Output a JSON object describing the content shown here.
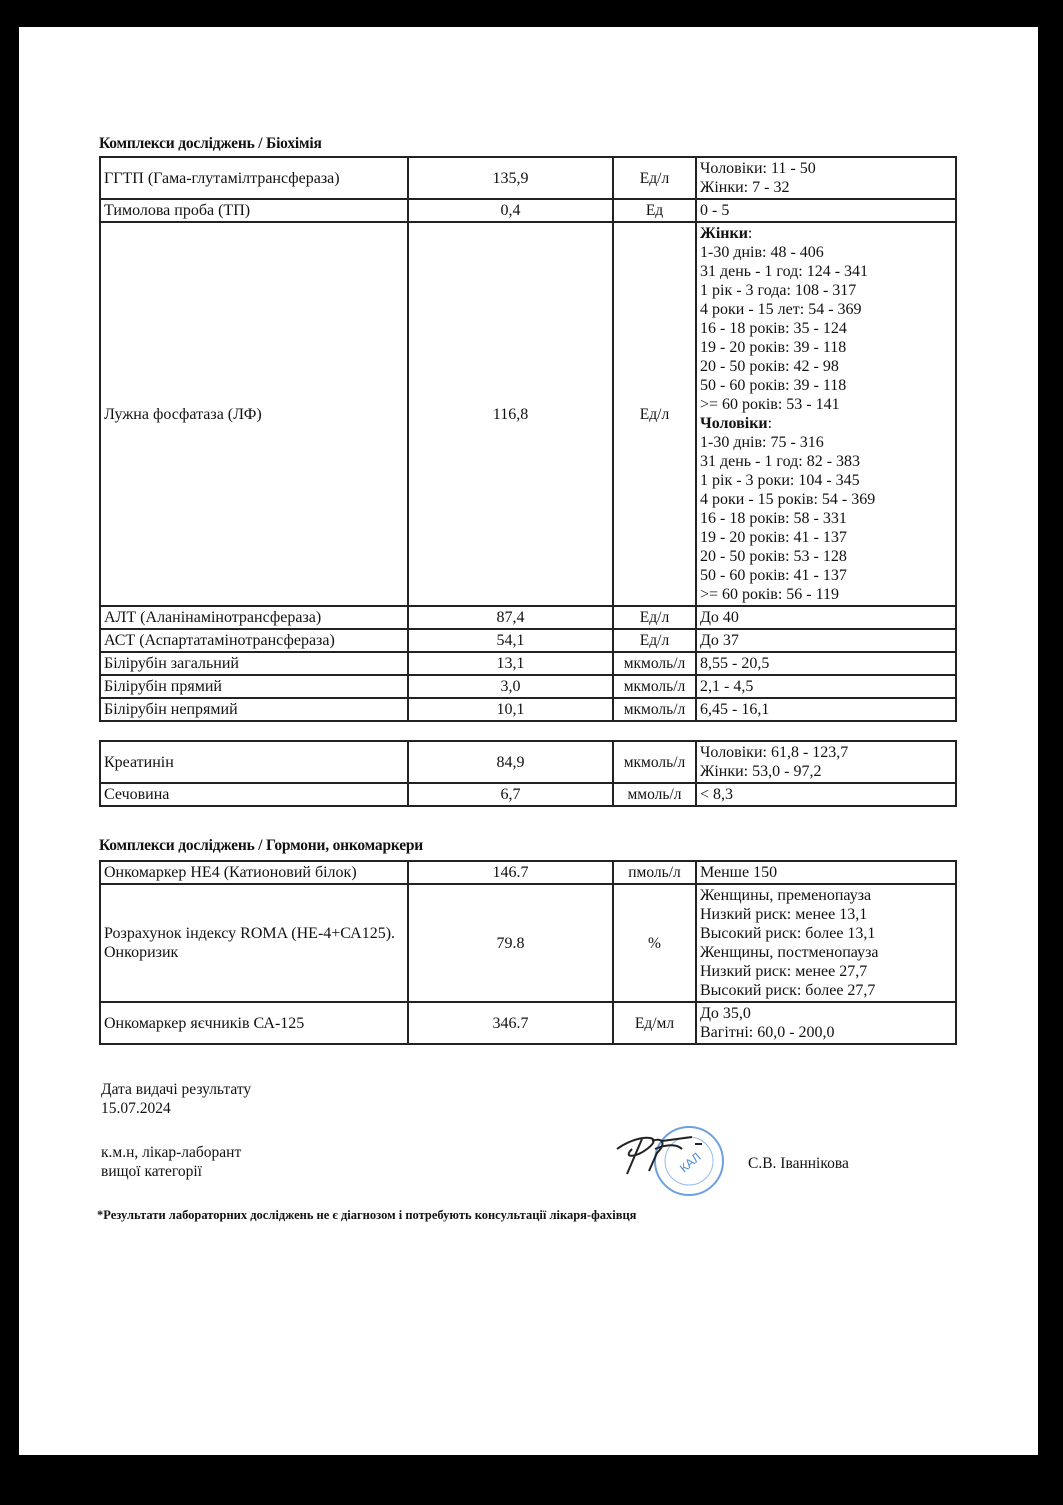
{
  "sections": [
    {
      "title": "Комплекси досліджень / Біохімія",
      "tables": [
        {
          "rows": [
            {
              "name": "ГГТП (Гама-глутамілтрансфераза)",
              "value": "135,9",
              "unit": "Ед/л",
              "ref": [
                {
                  "t": "Чоловіки: 11 - 50"
                },
                {
                  "t": "Жінки: 7 - 32"
                }
              ]
            },
            {
              "name": "Тимолова проба (ТП)",
              "value": "0,4",
              "unit": "Ед",
              "ref": [
                {
                  "t": "0 - 5"
                }
              ]
            },
            {
              "name": "Лужна фосфатаза (ЛФ)",
              "value": "116,8",
              "unit": "Ед/л",
              "ref": [
                {
                  "b": "Жінки",
                  "t": ":"
                },
                {
                  "t": "1-30 днів: 48 - 406"
                },
                {
                  "t": "31 день - 1 год: 124 - 341"
                },
                {
                  "t": "1 рік - 3 года: 108 - 317"
                },
                {
                  "t": "4 роки - 15 лет: 54 - 369"
                },
                {
                  "t": "16 - 18 років: 35 - 124"
                },
                {
                  "t": "19 - 20 років: 39 - 118"
                },
                {
                  "t": "20 - 50 років: 42 - 98"
                },
                {
                  "t": "50 - 60 років: 39 - 118"
                },
                {
                  "t": ">= 60 років: 53 - 141"
                },
                {
                  "b": "Чоловіки",
                  "t": ":"
                },
                {
                  "t": "1-30 днів: 75 - 316"
                },
                {
                  "t": "31 день - 1 год: 82 - 383"
                },
                {
                  "t": "1 рік - 3 роки: 104 - 345"
                },
                {
                  "t": "4 роки - 15 років: 54 - 369"
                },
                {
                  "t": "16 - 18 років: 58 - 331"
                },
                {
                  "t": "19 - 20 років: 41 - 137"
                },
                {
                  "t": "20 - 50 років: 53 - 128"
                },
                {
                  "t": "50 - 60 років: 41 - 137"
                },
                {
                  "t": ">= 60 років: 56 - 119"
                }
              ]
            },
            {
              "name": "АЛТ (Аланінамінотрансфераза)",
              "value": "87,4",
              "unit": "Ед/л",
              "ref": [
                {
                  "t": "До 40"
                }
              ]
            },
            {
              "name": "АСТ (Аспартатамінотрансфераза)",
              "value": "54,1",
              "unit": "Ед/л",
              "ref": [
                {
                  "t": "До 37"
                }
              ]
            },
            {
              "name": "Білірубін загальний",
              "value": "13,1",
              "unit": "мкмоль/л",
              "ref": [
                {
                  "t": "8,55 - 20,5"
                }
              ]
            },
            {
              "name": "Білірубін прямий",
              "value": "3,0",
              "unit": "мкмоль/л",
              "ref": [
                {
                  "t": "2,1 - 4,5"
                }
              ]
            },
            {
              "name": "Білірубін непрямий",
              "value": "10,1",
              "unit": "мкмоль/л",
              "ref": [
                {
                  "t": "6,45 - 16,1"
                }
              ]
            }
          ]
        },
        {
          "rows": [
            {
              "name": "Креатинін",
              "value": "84,9",
              "unit": "мкмоль/л",
              "ref": [
                {
                  "t": "Чоловіки: 61,8 - 123,7"
                },
                {
                  "t": "Жінки: 53,0 - 97,2"
                }
              ]
            },
            {
              "name": "Сечовина",
              "value": "6,7",
              "unit": "ммоль/л",
              "ref": [
                {
                  "t": "< 8,3"
                }
              ]
            }
          ]
        }
      ]
    },
    {
      "title": "Комплекси досліджень / Гормони, онкомаркери",
      "tables": [
        {
          "rows": [
            {
              "name": "Онкомаркер НЕ4 (Катионовий білок)",
              "value": "146.7",
              "unit": "пмоль/л",
              "ref": [
                {
                  "t": "Менше 150"
                }
              ]
            },
            {
              "name": "Розрахунок індексу ROMA (НЕ-4+СА125). Онкоризик",
              "value": "79.8",
              "unit": "%",
              "ref": [
                {
                  "t": "Женщины, пременопауза"
                },
                {
                  "t": "Низкий риск: менее 13,1"
                },
                {
                  "t": "Высокий риск: более 13,1"
                },
                {
                  "t": "Женщины, постменопауза"
                },
                {
                  "t": "Низкий риск: менее 27,7"
                },
                {
                  "t": "Высокий риск: более 27,7"
                }
              ]
            },
            {
              "name": "Онкомаркер яєчників СА-125",
              "value": "346.7",
              "unit": "Ед/мл",
              "ref": [
                {
                  "t": "До 35,0"
                },
                {
                  "t": "Вагітні: 60,0 - 200,0"
                }
              ]
            }
          ]
        }
      ]
    }
  ],
  "footer": {
    "issue_date_label": "Дата видачі результату",
    "issue_date": "15.07.2024",
    "position_line1": "к.м.н, лікар-лаборант",
    "position_line2": "вищої категорії",
    "doctor_name": "С.В. Іваннікова",
    "disclaimer": "*Результати лабораторних досліджень не є діагнозом і потребують консультації лікаря-фахівця",
    "stamp_color": "#3a7fd0"
  }
}
